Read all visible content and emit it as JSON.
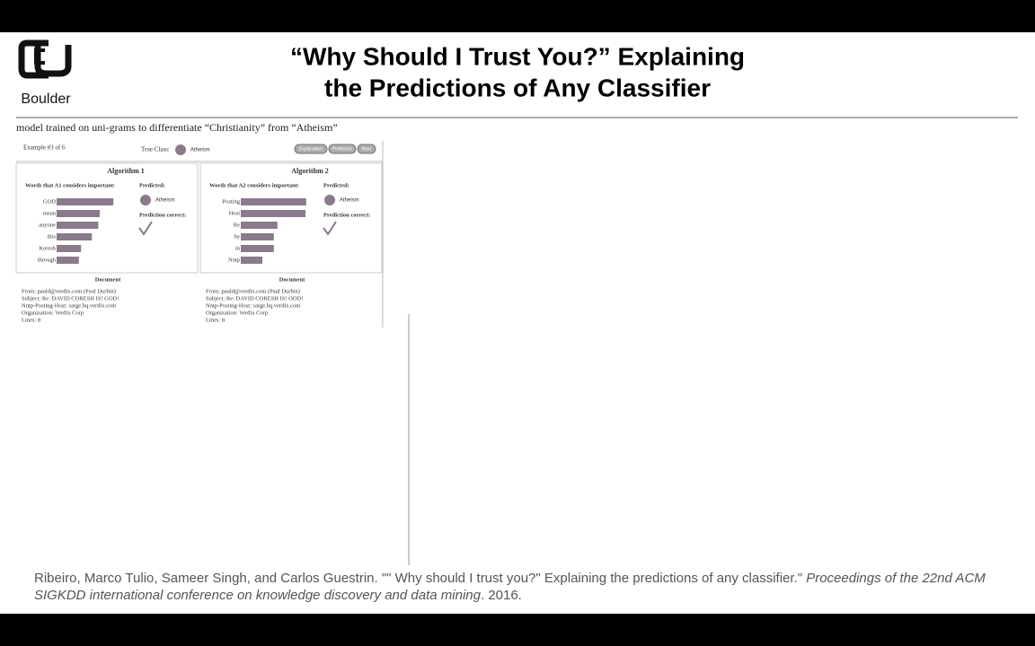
{
  "header": {
    "logo_text": "Boulder",
    "title_line1": "“Why Should I Trust You?” Explaining",
    "title_line2": "the Predictions of Any Classifier"
  },
  "subtitle": "model trained on uni-grams to differentiate “Christianity” from “Atheism”",
  "demo": {
    "example": "Example #3 of 6",
    "true_class_label": "True Class:",
    "true_class": "Atheism",
    "buttons": [
      "Explanation",
      "Prediction",
      "Next"
    ],
    "panels": [
      {
        "title": "Algorithm 1",
        "words_label": "Words that A1 considers important:",
        "words": [
          "GOD",
          "mean",
          "anyone",
          "this",
          "Koresh",
          "through"
        ],
        "weights": [
          0.79,
          0.6,
          0.58,
          0.49,
          0.34,
          0.31
        ],
        "predicted_label": "Predicted:",
        "predicted": "Atheism",
        "correct_label": "Prediction correct:",
        "document_title": "Document",
        "document_lines": [
          "From: pauld@verdix.com (Paul Durbin)",
          "Subject: Re: DAVID CORESH IS! GOD!",
          "Nntp-Posting-Host: sarge.hq.verdix.com",
          "Organization: Verdix Corp",
          "Lines: 8"
        ]
      },
      {
        "title": "Algorithm 2",
        "words_label": "Words that A2 considers important:",
        "words": [
          "Posting",
          "Host",
          "Re",
          "by",
          "in",
          "Nntp"
        ],
        "weights": [
          0.91,
          0.9,
          0.51,
          0.46,
          0.46,
          0.3
        ],
        "predicted_label": "Predicted:",
        "predicted": "Atheism",
        "correct_label": "Prediction correct:",
        "document_title": "Document",
        "document_lines": [
          "From: pauld@verdix.com (Paul Durbin)",
          "Subject: Re: DAVID CORESH IS! OOD!",
          "Nntp-Posting-Host: sarge.hq.verdix.com",
          "Organization: Verdix Corp",
          "Lines: 8"
        ]
      }
    ]
  },
  "citation": {
    "text": "Ribeiro, Marco Tulio, Sameer Singh, and Carlos Guestrin. \"\" Why should I trust you?\" Explaining the predictions of any classifier.\" ",
    "venue": "Proceedings of the 22nd ACM SIGKDD international conference on knowledge discovery and data mining",
    "year": ". 2016."
  }
}
